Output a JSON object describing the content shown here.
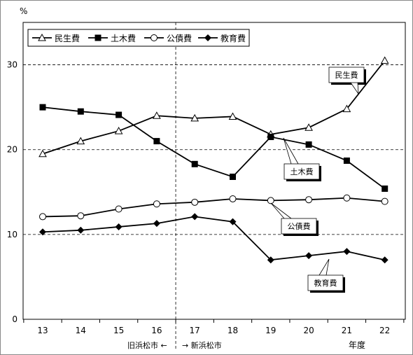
{
  "chart_data": {
    "type": "line",
    "ylabel": "%",
    "xlabel": "年度",
    "ylim": [
      0,
      35
    ],
    "yticks": [
      0,
      10,
      20,
      30
    ],
    "categories": [
      "13",
      "14",
      "15",
      "16",
      "17",
      "18",
      "19",
      "20",
      "21",
      "22"
    ],
    "grid": "horizontal dashed",
    "legend_position": "top-left",
    "series": [
      {
        "name": "民生費",
        "marker": "open-triangle",
        "values": [
          19.5,
          21.0,
          22.2,
          24.0,
          23.7,
          23.9,
          21.8,
          22.6,
          24.8,
          30.5
        ]
      },
      {
        "name": "土木費",
        "marker": "filled-square",
        "values": [
          25.0,
          24.5,
          24.1,
          21.0,
          18.3,
          16.8,
          21.5,
          20.6,
          18.7,
          15.4
        ]
      },
      {
        "name": "公債費",
        "marker": "open-circle",
        "values": [
          12.1,
          12.2,
          13.0,
          13.6,
          13.8,
          14.2,
          14.0,
          14.1,
          14.3,
          13.9
        ]
      },
      {
        "name": "教育費",
        "marker": "filled-diamond",
        "values": [
          10.3,
          10.5,
          10.9,
          11.3,
          12.1,
          11.5,
          7.0,
          7.5,
          8.0,
          7.0
        ]
      }
    ],
    "callouts": [
      "民生費",
      "土木費",
      "公債費",
      "教育費"
    ],
    "divider": {
      "after_category": "16",
      "left_label": "旧浜松市 ←",
      "right_label": "→ 新浜松市"
    }
  }
}
